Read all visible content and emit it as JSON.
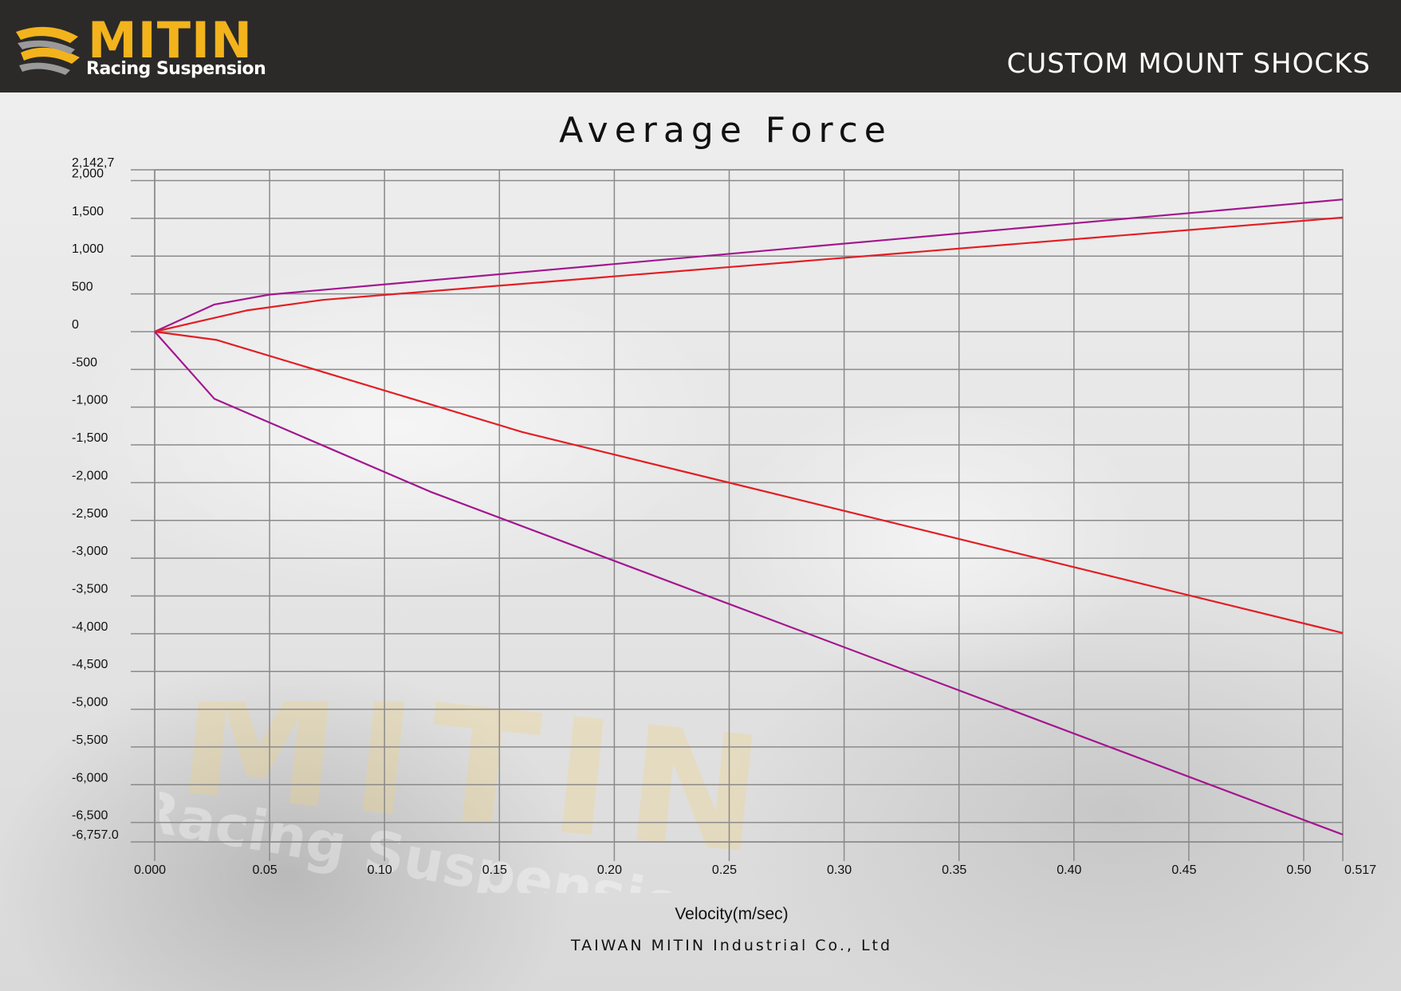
{
  "header": {
    "brand": "MITIN",
    "tagline": "Racing Suspension",
    "title": "CUSTOM MOUNT SHOCKS"
  },
  "footer": "TAIWAN MITIN Industrial Co., Ltd",
  "watermark": {
    "brand": "MITIN",
    "tagline": "Racing Suspension"
  },
  "colors": {
    "red": "#e31e24",
    "purple": "#a3168f",
    "grid": "#8a8a8a",
    "header": "#2b2a28",
    "brand": "#f2b31d"
  },
  "chart_data": {
    "type": "line",
    "title": "Average Force",
    "xlabel": "Velocity(m/sec)",
    "ylabel": "",
    "xlim": [
      0,
      0.517
    ],
    "ylim": [
      -6757.0,
      2142.7
    ],
    "grid": true,
    "x_ticks": [
      {
        "v": 0,
        "label": "0.000"
      },
      {
        "v": 0.05,
        "label": "0.05"
      },
      {
        "v": 0.1,
        "label": "0.10"
      },
      {
        "v": 0.15,
        "label": "0.15"
      },
      {
        "v": 0.2,
        "label": "0.20"
      },
      {
        "v": 0.25,
        "label": "0.25"
      },
      {
        "v": 0.3,
        "label": "0.30"
      },
      {
        "v": 0.35,
        "label": "0.35"
      },
      {
        "v": 0.4,
        "label": "0.40"
      },
      {
        "v": 0.45,
        "label": "0.45"
      },
      {
        "v": 0.5,
        "label": "0.50"
      },
      {
        "v": 0.517,
        "label": "0.517"
      }
    ],
    "y_ticks": [
      {
        "v": 2142.7,
        "label": "2,142,7"
      },
      {
        "v": 2000,
        "label": "2,000"
      },
      {
        "v": 1500,
        "label": "1,500"
      },
      {
        "v": 1000,
        "label": "1,000"
      },
      {
        "v": 500,
        "label": "500"
      },
      {
        "v": 0,
        "label": "0"
      },
      {
        "v": -500,
        "label": "-500"
      },
      {
        "v": -1000,
        "label": "-1,000"
      },
      {
        "v": -1500,
        "label": "-1,500"
      },
      {
        "v": -2000,
        "label": "-2,000"
      },
      {
        "v": -2500,
        "label": "-2,500"
      },
      {
        "v": -3000,
        "label": "-3,000"
      },
      {
        "v": -3500,
        "label": "-3,500"
      },
      {
        "v": -4000,
        "label": "-4,000"
      },
      {
        "v": -4500,
        "label": "-4,500"
      },
      {
        "v": -5000,
        "label": "-5,000"
      },
      {
        "v": -5500,
        "label": "-5,500"
      },
      {
        "v": -6000,
        "label": "-6,000"
      },
      {
        "v": -6500,
        "label": "-6,500"
      },
      {
        "v": -6757.0,
        "label": "-6,757.0"
      }
    ],
    "series": [
      {
        "color": "#a3168f",
        "x": [
          0,
          0.026,
          0.05,
          0.517
        ],
        "y": [
          0,
          360,
          490,
          1750
        ]
      },
      {
        "color": "#e31e24",
        "x": [
          0,
          0.04,
          0.073,
          0.517
        ],
        "y": [
          0,
          280,
          420,
          1510
        ]
      },
      {
        "color": "#e31e24",
        "x": [
          0,
          0.027,
          0.16,
          0.517
        ],
        "y": [
          0,
          -110,
          -1330,
          -3990
        ]
      },
      {
        "color": "#a3168f",
        "x": [
          0,
          0.026,
          0.12,
          0.517
        ],
        "y": [
          0,
          -890,
          -2120,
          -6660
        ]
      }
    ]
  }
}
